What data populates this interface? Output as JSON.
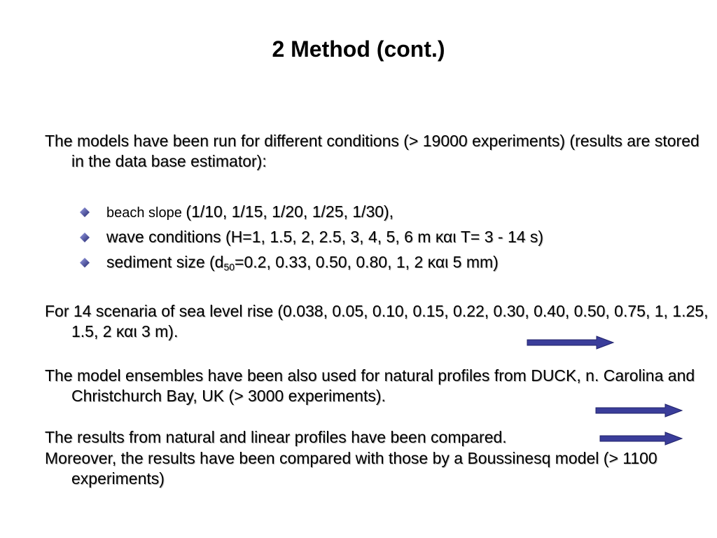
{
  "slide": {
    "title": "2 Method (cont.)",
    "para1": "The models have been run for different conditions (> 19000 experiments) (results are stored in the data base estimator):",
    "bullets": {
      "b1_prefix": "beach slope ",
      "b1_values": "(1/10, 1/15, 1/20, 1/25, 1/30),",
      "b2": "wave conditions (H=1, 1.5, 2, 2.5, 3, 4, 5, 6 m και T= 3 - 14 s)",
      "b3_pre": "sediment size (d",
      "b3_sub": "50",
      "b3_post": "=0.2, 0.33, 0.50,  0.80, 1, 2 και 5 mm)"
    },
    "para2": "For 14 scenaria of sea level rise (0.038, 0.05, 0.10, 0.15, 0.22, 0.30, 0.40, 0.50, 0.75, 1, 1.25, 1.5, 2 και 3 m).",
    "para3": "The model ensembles have been also used for natural profiles from DUCK, n. Carolina and Christchurch Bay, UK (> 3000 experiments).",
    "para4_line1": "The results from natural and linear profiles have been compared.",
    "para4_line2": "Moreover, the results have been compared with those by a Boussinesq model (> 1100 experiments)"
  },
  "colors": {
    "arrow": "#3a3d9a",
    "bullet_diamond": "#4a4fa8"
  }
}
